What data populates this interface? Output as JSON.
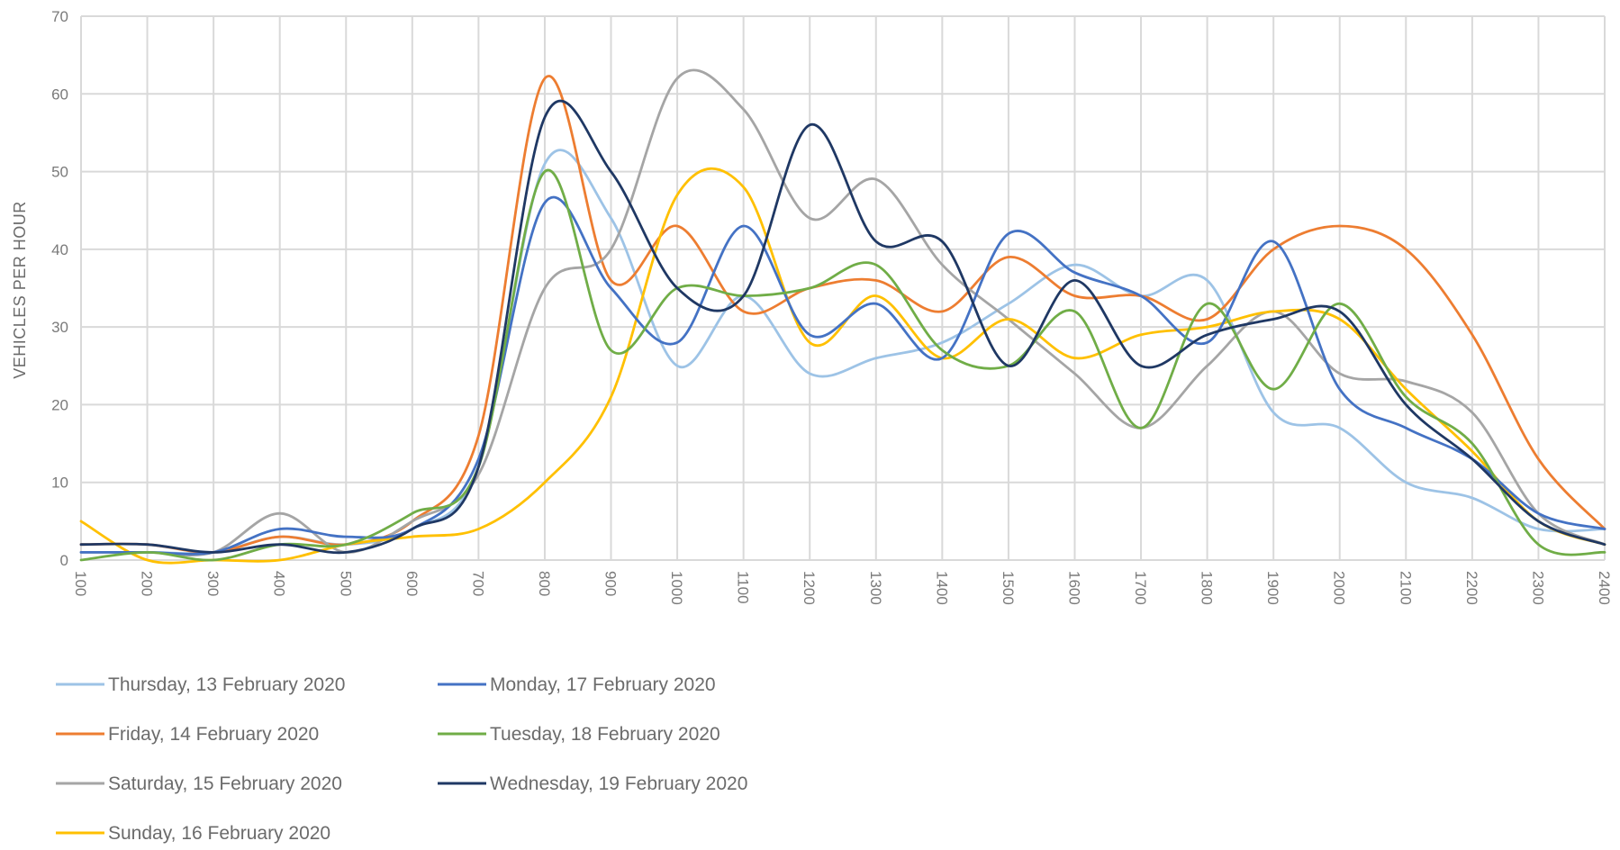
{
  "chart_data": {
    "type": "line",
    "title": "",
    "xlabel": "",
    "ylabel": "VEHICLES PER HOUR",
    "ylim": [
      0,
      70
    ],
    "yticks": [
      0,
      10,
      20,
      30,
      40,
      50,
      60,
      70
    ],
    "grid": true,
    "legend_position": "bottom-left",
    "x": [
      "100",
      "200",
      "300",
      "400",
      "500",
      "600",
      "700",
      "800",
      "900",
      "1000",
      "1100",
      "1200",
      "1300",
      "1400",
      "1500",
      "1600",
      "1700",
      "1800",
      "1900",
      "2000",
      "2100",
      "2200",
      "2300",
      "2400"
    ],
    "series": [
      {
        "name": "Thursday, 13 February 2020",
        "color": "#9dc3e6",
        "values": [
          1,
          1,
          1,
          3,
          2,
          4,
          12,
          51,
          44,
          25,
          34,
          24,
          26,
          28,
          33,
          38,
          34,
          36,
          19,
          17,
          10,
          8,
          4,
          4
        ]
      },
      {
        "name": "Friday, 14 February 2020",
        "color": "#ed7d31",
        "values": [
          2,
          2,
          1,
          3,
          2,
          5,
          16,
          62,
          36,
          43,
          32,
          35,
          36,
          32,
          39,
          34,
          34,
          31,
          40,
          43,
          40,
          29,
          13,
          4
        ]
      },
      {
        "name": "Saturday, 15 February 2020",
        "color": "#a5a5a5",
        "values": [
          1,
          1,
          1,
          6,
          1,
          5,
          11,
          35,
          40,
          62,
          58,
          44,
          49,
          38,
          31,
          24,
          17,
          25,
          32,
          24,
          23,
          19,
          6,
          2
        ]
      },
      {
        "name": "Sunday, 16 February 2020",
        "color": "#ffc000",
        "values": [
          5,
          0,
          0,
          0,
          2,
          3,
          4,
          10,
          21,
          47,
          48,
          28,
          34,
          26,
          31,
          26,
          29,
          30,
          32,
          31,
          22,
          14,
          5,
          2
        ]
      },
      {
        "name": "Monday, 17 February 2020",
        "color": "#4472c4",
        "values": [
          1,
          1,
          1,
          4,
          3,
          4,
          13,
          46,
          35,
          28,
          43,
          29,
          33,
          26,
          42,
          37,
          34,
          28,
          41,
          22,
          17,
          13,
          6,
          4
        ]
      },
      {
        "name": "Tuesday, 18 February 2020",
        "color": "#70ad47",
        "values": [
          0,
          1,
          0,
          2,
          2,
          6,
          12,
          50,
          27,
          35,
          34,
          35,
          38,
          27,
          25,
          32,
          17,
          33,
          22,
          33,
          21,
          15,
          2,
          1
        ]
      },
      {
        "name": "Wednesday, 19 February 2020",
        "color": "#1f3864",
        "values": [
          2,
          2,
          1,
          2,
          1,
          4,
          12,
          57,
          50,
          35,
          34,
          56,
          41,
          41,
          25,
          36,
          25,
          29,
          31,
          32,
          20,
          13,
          5,
          2
        ]
      }
    ]
  }
}
